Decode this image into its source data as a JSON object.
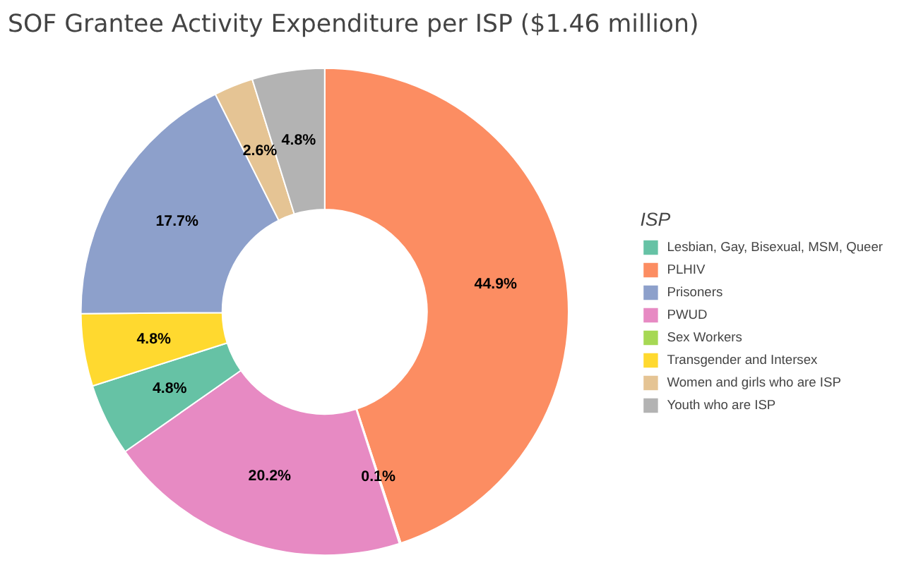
{
  "chart_data": {
    "type": "donut",
    "title": "SOF Grantee Activity Expenditure per ISP ($1.46 million)",
    "legend_title": "ISP",
    "legend": "right",
    "categories": [
      "PLHIV",
      "Sex Workers",
      "PWUD",
      "Lesbian, Gay, Bisexual, MSM, Queer",
      "Transgender and Intersex",
      "Prisoners",
      "Women and girls who are ISP",
      "Youth who are ISP"
    ],
    "values": [
      44.9,
      0.1,
      20.2,
      4.8,
      4.8,
      17.7,
      2.6,
      4.8
    ],
    "colors": [
      "#fc8d62",
      "#a6d854",
      "#e78ac3",
      "#66c2a5",
      "#ffd92f",
      "#8da0cb",
      "#e5c494",
      "#b3b3b3"
    ],
    "value_labels": [
      "44.9%",
      "0.1%",
      "20.2%",
      "4.8%",
      "4.8%",
      "17.7%",
      "2.6%",
      "4.8%"
    ]
  }
}
